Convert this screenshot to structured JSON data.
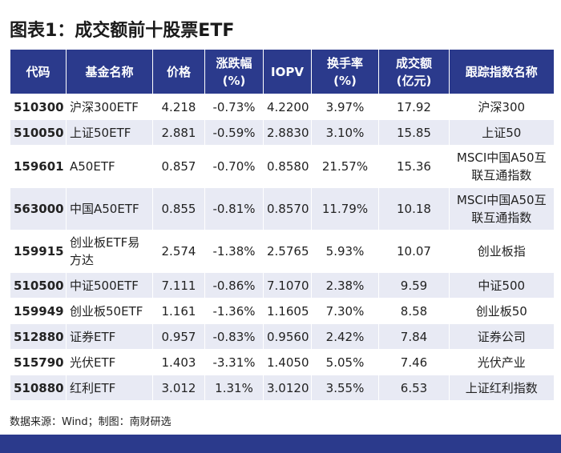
{
  "header": {
    "title": "图表1：成交额前十股票ETF"
  },
  "table": {
    "columns": [
      "代码",
      "基金名称",
      "价格",
      "涨跌幅\n(%)",
      "IOPV",
      "换手率\n(%)",
      "成交额\n(亿元)",
      "跟踪指数名称"
    ],
    "rows": [
      [
        "510300",
        "沪深300ETF",
        "4.218",
        "-0.73%",
        "4.2200",
        "3.97%",
        "17.92",
        "沪深300"
      ],
      [
        "510050",
        "上证50ETF",
        "2.881",
        "-0.59%",
        "2.8830",
        "3.10%",
        "15.85",
        "上证50"
      ],
      [
        "159601",
        "A50ETF",
        "0.857",
        "-0.70%",
        "0.8580",
        "21.57%",
        "15.36",
        "MSCI中国A50互联互通指数"
      ],
      [
        "563000",
        "中国A50ETF",
        "0.855",
        "-0.81%",
        "0.8570",
        "11.79%",
        "10.18",
        "MSCI中国A50互联互通指数"
      ],
      [
        "159915",
        "创业板ETF易方达",
        "2.574",
        "-1.38%",
        "2.5765",
        "5.93%",
        "10.07",
        "创业板指"
      ],
      [
        "510500",
        "中证500ETF",
        "7.111",
        "-0.86%",
        "7.1070",
        "2.38%",
        "9.59",
        "中证500"
      ],
      [
        "159949",
        "创业板50ETF",
        "1.161",
        "-1.36%",
        "1.1605",
        "7.30%",
        "8.58",
        "创业板50"
      ],
      [
        "512880",
        "证券ETF",
        "0.957",
        "-0.83%",
        "0.9560",
        "2.42%",
        "7.84",
        "证券公司"
      ],
      [
        "515790",
        "光伏ETF",
        "1.403",
        "-3.31%",
        "1.4050",
        "5.05%",
        "7.46",
        "光伏产业"
      ],
      [
        "510880",
        "红利ETF",
        "3.012",
        "1.31%",
        "3.0120",
        "3.55%",
        "6.53",
        "上证红利指数"
      ]
    ]
  },
  "footer": {
    "source": "数据来源：Wind；制图：南财研选"
  }
}
